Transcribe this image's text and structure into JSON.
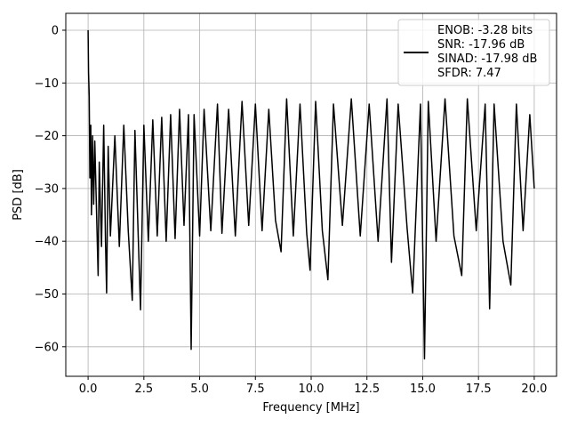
{
  "chart_data": {
    "type": "line",
    "title": "",
    "xlabel": "Frequency [MHz]",
    "ylabel": "PSD [dB]",
    "xlim": [
      -1.0,
      21.0
    ],
    "ylim": [
      -65.6,
      3.2
    ],
    "grid": true,
    "legend_position": "top-right",
    "x_ticks": [
      0.0,
      2.5,
      5.0,
      7.5,
      10.0,
      12.5,
      15.0,
      17.5,
      20.0
    ],
    "x_tick_labels": [
      "0.0",
      "2.5",
      "5.0",
      "7.5",
      "10.0",
      "12.5",
      "15.0",
      "17.5",
      "20.0"
    ],
    "y_ticks": [
      0,
      -10,
      -20,
      -30,
      -40,
      -50,
      -60
    ],
    "y_tick_labels": [
      "0",
      "−10",
      "−20",
      "−30",
      "−40",
      "−50",
      "−60"
    ],
    "legend": {
      "lines": [
        "ENOB: -3.28 bits",
        "SNR: -17.96 dB",
        "SINAD: -17.98 dB",
        "SFDR: 7.47"
      ]
    },
    "series": [
      {
        "color": "#000000",
        "points": [
          [
            0.0,
            0.0
          ],
          [
            0.02,
            -8.0
          ],
          [
            0.05,
            -12.5
          ],
          [
            0.08,
            -28.0
          ],
          [
            0.12,
            -18.0
          ],
          [
            0.15,
            -35.0
          ],
          [
            0.2,
            -20.0
          ],
          [
            0.25,
            -33.0
          ],
          [
            0.3,
            -21.0
          ],
          [
            0.4,
            -38.0
          ],
          [
            0.45,
            -46.5
          ],
          [
            0.5,
            -25.0
          ],
          [
            0.6,
            -41.0
          ],
          [
            0.7,
            -18.0
          ],
          [
            0.78,
            -40.0
          ],
          [
            0.83,
            -49.8
          ],
          [
            0.9,
            -22.0
          ],
          [
            1.0,
            -39.0
          ],
          [
            1.2,
            -20.0
          ],
          [
            1.4,
            -41.0
          ],
          [
            1.6,
            -18.0
          ],
          [
            1.8,
            -38.0
          ],
          [
            1.98,
            -51.2
          ],
          [
            2.1,
            -19.0
          ],
          [
            2.35,
            -53.0
          ],
          [
            2.5,
            -18.0
          ],
          [
            2.7,
            -40.0
          ],
          [
            2.9,
            -17.0
          ],
          [
            3.1,
            -39.0
          ],
          [
            3.3,
            -16.5
          ],
          [
            3.5,
            -40.0
          ],
          [
            3.7,
            -16.0
          ],
          [
            3.9,
            -39.5
          ],
          [
            4.1,
            -15.0
          ],
          [
            4.3,
            -37.0
          ],
          [
            4.5,
            -16.0
          ],
          [
            4.62,
            -60.5
          ],
          [
            4.75,
            -16.0
          ],
          [
            5.0,
            -39.0
          ],
          [
            5.2,
            -15.0
          ],
          [
            5.5,
            -38.0
          ],
          [
            5.8,
            -14.0
          ],
          [
            6.0,
            -38.5
          ],
          [
            6.3,
            -15.0
          ],
          [
            6.6,
            -39.0
          ],
          [
            6.9,
            -13.5
          ],
          [
            7.2,
            -37.0
          ],
          [
            7.5,
            -14.0
          ],
          [
            7.8,
            -38.0
          ],
          [
            8.1,
            -15.0
          ],
          [
            8.4,
            -36.0
          ],
          [
            8.65,
            -42.0
          ],
          [
            8.9,
            -13.0
          ],
          [
            9.2,
            -39.0
          ],
          [
            9.5,
            -14.0
          ],
          [
            9.8,
            -38.5
          ],
          [
            9.95,
            -45.5
          ],
          [
            10.2,
            -13.5
          ],
          [
            10.5,
            -38.0
          ],
          [
            10.75,
            -47.3
          ],
          [
            11.0,
            -14.0
          ],
          [
            11.4,
            -37.0
          ],
          [
            11.8,
            -13.0
          ],
          [
            12.2,
            -39.0
          ],
          [
            12.6,
            -14.0
          ],
          [
            13.0,
            -40.0
          ],
          [
            13.4,
            -13.0
          ],
          [
            13.6,
            -44.0
          ],
          [
            13.9,
            -14.0
          ],
          [
            14.3,
            -37.5
          ],
          [
            14.55,
            -49.8
          ],
          [
            14.9,
            -14.0
          ],
          [
            15.08,
            -62.3
          ],
          [
            15.25,
            -13.5
          ],
          [
            15.6,
            -40.0
          ],
          [
            16.0,
            -13.0
          ],
          [
            16.4,
            -39.0
          ],
          [
            16.75,
            -46.5
          ],
          [
            17.0,
            -13.0
          ],
          [
            17.4,
            -38.0
          ],
          [
            17.8,
            -14.0
          ],
          [
            18.0,
            -52.8
          ],
          [
            18.2,
            -14.0
          ],
          [
            18.6,
            -40.0
          ],
          [
            18.95,
            -48.3
          ],
          [
            19.2,
            -14.0
          ],
          [
            19.5,
            -38.0
          ],
          [
            19.8,
            -16.0
          ],
          [
            20.0,
            -30.0
          ]
        ]
      }
    ]
  }
}
